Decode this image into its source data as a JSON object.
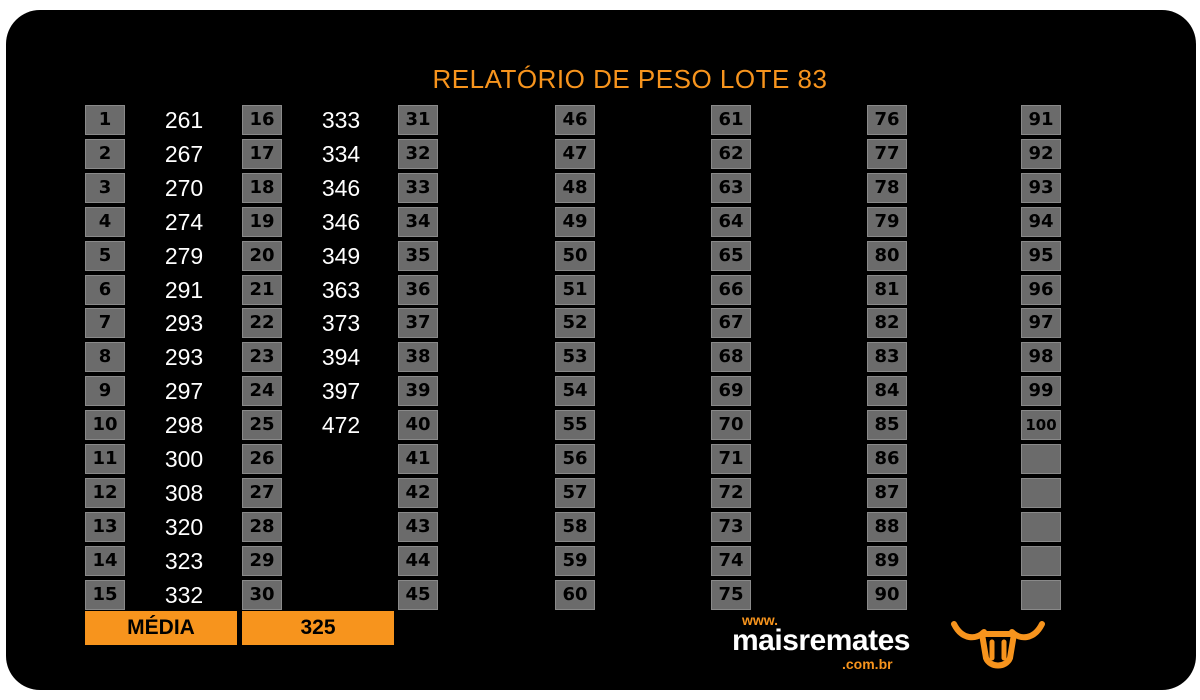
{
  "title": "RELATÓRIO DE PESO LOTE 83",
  "columns": [
    {
      "numbers": [
        "1",
        "2",
        "3",
        "4",
        "5",
        "6",
        "7",
        "8",
        "9",
        "10",
        "11",
        "12",
        "13",
        "14",
        "15"
      ],
      "values": [
        "261",
        "267",
        "270",
        "274",
        "279",
        "291",
        "293",
        "293",
        "297",
        "298",
        "300",
        "308",
        "320",
        "323",
        "332"
      ]
    },
    {
      "numbers": [
        "16",
        "17",
        "18",
        "19",
        "20",
        "21",
        "22",
        "23",
        "24",
        "25",
        "26",
        "27",
        "28",
        "29",
        "30"
      ],
      "values": [
        "333",
        "334",
        "346",
        "346",
        "349",
        "363",
        "373",
        "394",
        "397",
        "472",
        "",
        "",
        "",
        "",
        ""
      ]
    },
    {
      "numbers": [
        "31",
        "32",
        "33",
        "34",
        "35",
        "36",
        "37",
        "38",
        "39",
        "40",
        "41",
        "42",
        "43",
        "44",
        "45"
      ],
      "values": []
    },
    {
      "numbers": [
        "46",
        "47",
        "48",
        "49",
        "50",
        "51",
        "52",
        "53",
        "54",
        "55",
        "56",
        "57",
        "58",
        "59",
        "60"
      ],
      "values": []
    },
    {
      "numbers": [
        "61",
        "62",
        "63",
        "64",
        "65",
        "66",
        "67",
        "68",
        "69",
        "70",
        "71",
        "72",
        "73",
        "74",
        "75"
      ],
      "values": []
    },
    {
      "numbers": [
        "76",
        "77",
        "78",
        "79",
        "80",
        "81",
        "82",
        "83",
        "84",
        "85",
        "86",
        "87",
        "88",
        "89",
        "90"
      ],
      "values": []
    },
    {
      "numbers": [
        "91",
        "92",
        "93",
        "94",
        "95",
        "96",
        "97",
        "98",
        "99",
        "100",
        "",
        "",
        "",
        "",
        ""
      ],
      "values": []
    }
  ],
  "footer": {
    "media_label": "MÉDIA",
    "media_value": "325"
  },
  "brand": {
    "www": "www.",
    "name": "maisremates",
    "domain": ".com.br"
  },
  "colors": {
    "accent": "#f7941d",
    "background": "#000000",
    "cell": "#6b6b6b"
  }
}
